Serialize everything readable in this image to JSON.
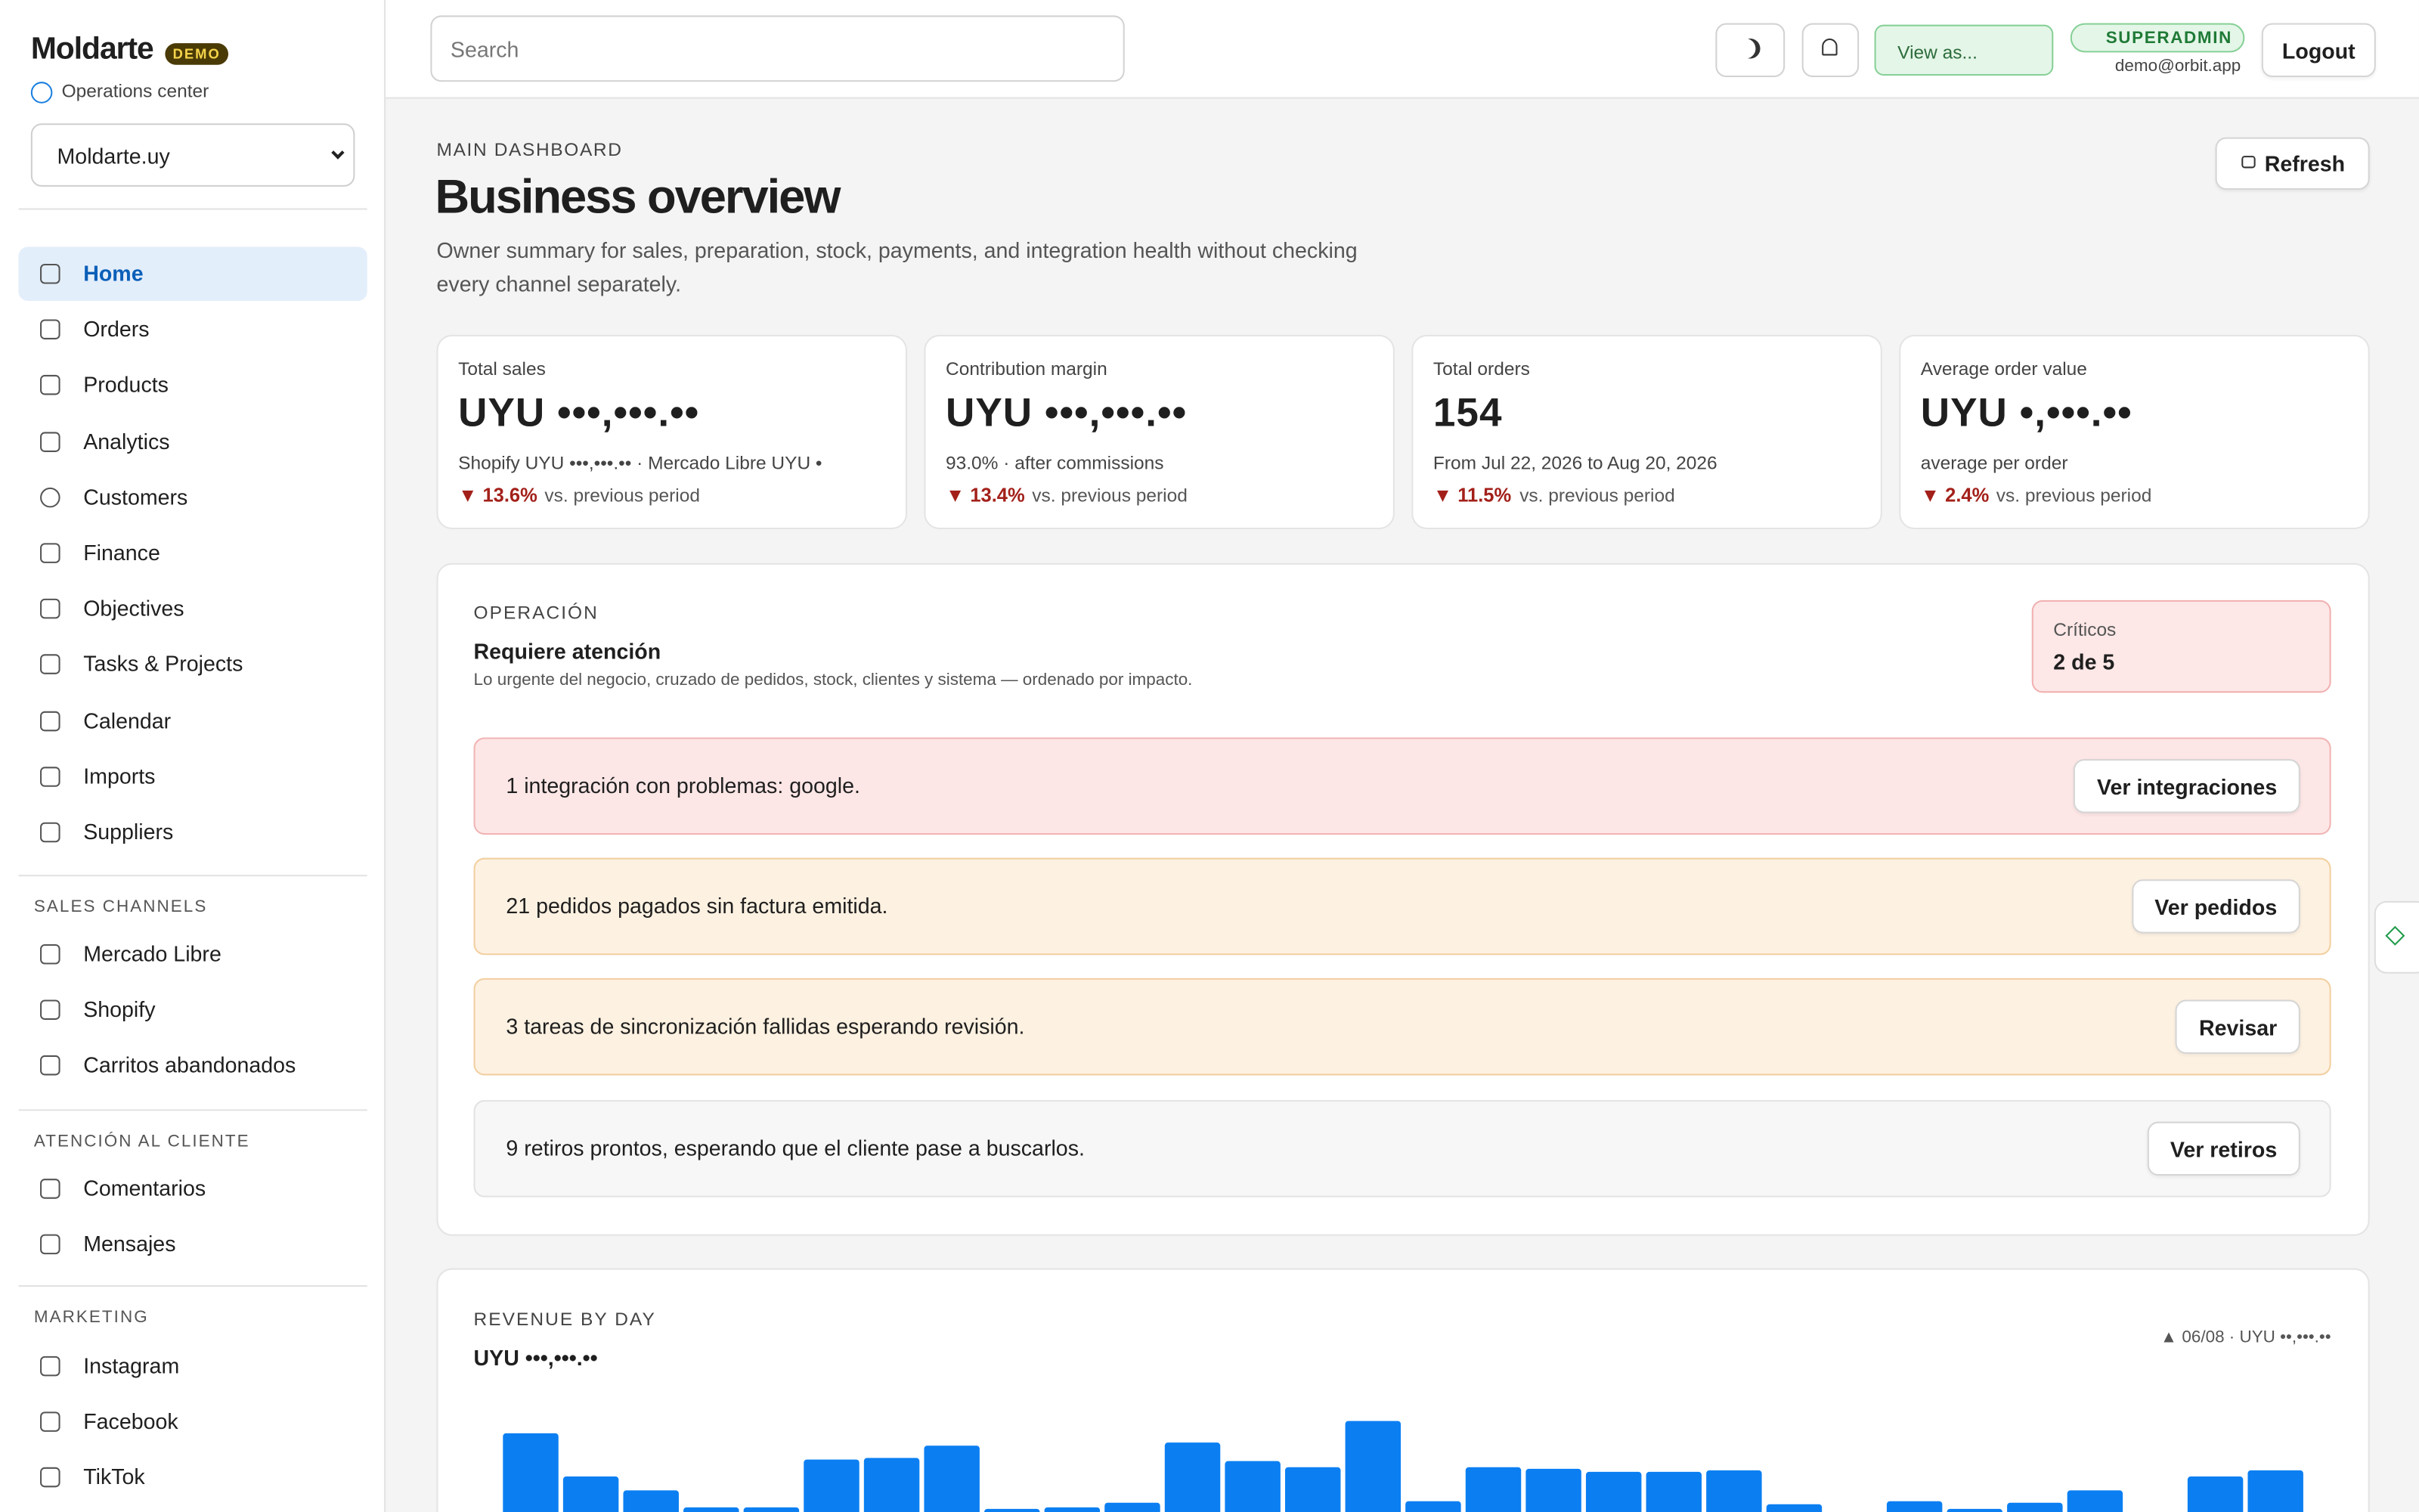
{
  "sidebar": {
    "brand": "Moldarte",
    "badge": "DEMO",
    "subtitle": "Operations center",
    "store": "Moldarte.uy",
    "nav": [
      "Home",
      "Orders",
      "Products",
      "Analytics",
      "Customers",
      "Finance",
      "Objectives",
      "Tasks & Projects",
      "Calendar",
      "Imports",
      "Suppliers"
    ],
    "sections": [
      {
        "title": "SALES CHANNELS",
        "items": [
          "Mercado Libre",
          "Shopify",
          "Carritos abandonados"
        ]
      },
      {
        "title": "ATENCIÓN AL CLIENTE",
        "items": [
          "Comentarios",
          "Mensajes"
        ]
      },
      {
        "title": "MARKETING",
        "items": [
          "Instagram",
          "Facebook",
          "TikTok"
        ]
      }
    ]
  },
  "topbar": {
    "search": "Search",
    "view_as": "View as...",
    "role": "SUPERADMIN",
    "email": "demo@orbit.app",
    "logout": "Logout"
  },
  "header": {
    "eyebrow": "MAIN DASHBOARD",
    "title": "Business overview",
    "description": "Owner summary for sales, preparation, stock, payments, and integration health without checking every channel separately.",
    "refresh": "Refresh"
  },
  "kpis": [
    {
      "label": "Total sales",
      "value": "UYU •••,•••.••",
      "detail": "Shopify UYU •••,•••.•• · Mercado Libre UYU •",
      "change": "▼ 13.6%",
      "note": "vs. previous period"
    },
    {
      "label": "Contribution margin",
      "value": "UYU •••,•••.••",
      "detail": "93.0% · after commissions",
      "change": "▼ 13.4%",
      "note": "vs. previous period"
    },
    {
      "label": "Total orders",
      "value": "154",
      "detail": "From Jul 22, 2026 to Aug 20, 2026",
      "change": "▼ 11.5%",
      "note": "vs. previous period"
    },
    {
      "label": "Average order value",
      "value": "UYU •,•••.••",
      "detail": "average per order",
      "change": "▼ 2.4%",
      "note": "vs. previous period"
    }
  ],
  "operations": {
    "eyebrow": "OPERACIÓN",
    "title": "Requiere atención",
    "description": "Lo urgente del negocio, cruzado de pedidos, stock, clientes y sistema — ordenado por impacto.",
    "critical_label": "Críticos",
    "critical_value": "2 de 5",
    "alerts": [
      {
        "text": "1 integración con problemas: google.",
        "action": "Ver integraciones",
        "tone": "red"
      },
      {
        "text": "21 pedidos pagados sin factura emitida.",
        "action": "Ver pedidos",
        "tone": "orange"
      },
      {
        "text": "3 tareas de sincronización fallidas esperando revisión.",
        "action": "Revisar",
        "tone": "orange"
      },
      {
        "text": "9 retiros prontos, esperando que el cliente pase a buscarlos.",
        "action": "Ver retiros",
        "tone": "grey"
      }
    ]
  },
  "revenue": {
    "eyebrow": "REVENUE BY DAY",
    "total": "UYU •••,•••.••",
    "annotation": "▲ 06/08 · UYU ••,•••.••",
    "color": "#0b7ff2",
    "values": [
      51,
      23,
      14,
      3,
      3,
      34,
      35,
      43,
      2,
      3,
      6,
      45,
      33,
      29,
      59,
      7,
      29,
      28,
      26,
      26,
      27,
      5,
      0,
      7,
      2,
      6,
      14,
      0,
      23,
      27
    ]
  }
}
